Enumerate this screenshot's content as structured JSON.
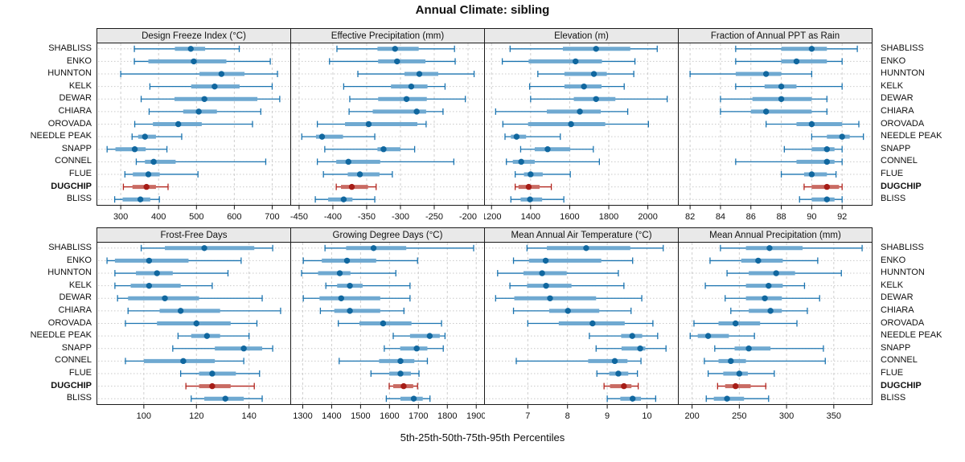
{
  "title": "Annual Climate: sibling",
  "caption": "5th-25th-50th-75th-95th Percentiles",
  "stations": [
    "SHABLISS",
    "ENKO",
    "HUNNTON",
    "KELK",
    "DEWAR",
    "CHIARA",
    "OROVADA",
    "NEEDLE PEAK",
    "SNAPP",
    "CONNEL",
    "FLUE",
    "DUGCHIP",
    "BLISS"
  ],
  "highlight_station": "DUGCHIP",
  "colors": {
    "blue_line": "#1b74b0",
    "blue_band": "#6fa9d1",
    "blue_dot": "#10679f",
    "red_line": "#b2251e",
    "red_band": "#c96b63",
    "red_dot": "#a61d17",
    "grid": "#cfcfcf",
    "row_dots": "#c9c9c9",
    "header_bg": "#e9e9e9",
    "border": "#1a1a1a",
    "tick_text": "#111111"
  },
  "chart_data": {
    "type": "percentile_dotplot_trellis",
    "grid": "2 rows x 4 columns, shared station axis on left and right",
    "percentiles": [
      5,
      25,
      50,
      75,
      95
    ],
    "legend_note": "thin line = 5th-95th, thick band = 25th-75th, dot = 50th percentile; DUGCHIP highlighted red",
    "panels": [
      {
        "title": "Design Freeze Index (°C)",
        "ticks": [
          300,
          400,
          500,
          600,
          700
        ],
        "range": [
          236,
          750
        ],
        "values": [
          [
            336,
            443,
            485,
            523,
            613
          ],
          [
            336,
            373,
            493,
            579,
            695
          ],
          [
            300,
            508,
            566,
            627,
            714
          ],
          [
            377,
            486,
            548,
            614,
            700
          ],
          [
            354,
            442,
            521,
            661,
            720
          ],
          [
            375,
            465,
            506,
            554,
            670
          ],
          [
            337,
            385,
            452,
            514,
            648
          ],
          [
            330,
            346,
            364,
            393,
            461
          ],
          [
            264,
            286,
            337,
            366,
            422
          ],
          [
            341,
            364,
            387,
            445,
            683
          ],
          [
            311,
            332,
            373,
            403,
            504
          ],
          [
            307,
            331,
            368,
            393,
            425
          ],
          [
            284,
            305,
            352,
            378,
            402
          ]
        ]
      },
      {
        "title": "Effective Precipitation (mm)",
        "ticks": [
          -450,
          -400,
          -350,
          -300,
          -250,
          -200
        ],
        "range": [
          -463,
          -175
        ],
        "values": [
          [
            -394,
            -334,
            -308,
            -273,
            -220
          ],
          [
            -405,
            -333,
            -305,
            -263,
            -219
          ],
          [
            -363,
            -294,
            -272,
            -244,
            -191
          ],
          [
            -384,
            -314,
            -284,
            -260,
            -234
          ],
          [
            -375,
            -333,
            -291,
            -261,
            -204
          ],
          [
            -376,
            -341,
            -276,
            -262,
            -237
          ],
          [
            -423,
            -382,
            -347,
            -275,
            -262
          ],
          [
            -446,
            -425,
            -416,
            -385,
            -338
          ],
          [
            -412,
            -334,
            -325,
            -300,
            -279
          ],
          [
            -423,
            -395,
            -377,
            -330,
            -221
          ],
          [
            -414,
            -378,
            -360,
            -331,
            -312
          ],
          [
            -395,
            -388,
            -372,
            -348,
            -336
          ],
          [
            -426,
            -407,
            -384,
            -371,
            -338
          ]
        ]
      },
      {
        "title": "Elevation (m)",
        "ticks": [
          1200,
          1400,
          1600,
          1800,
          2000
        ],
        "range": [
          1162,
          2158
        ],
        "values": [
          [
            1295,
            1565,
            1735,
            1910,
            2048
          ],
          [
            1255,
            1390,
            1630,
            1765,
            1934
          ],
          [
            1437,
            1573,
            1724,
            1790,
            1928
          ],
          [
            1395,
            1573,
            1673,
            1763,
            1879
          ],
          [
            1400,
            1621,
            1735,
            1834,
            2099
          ],
          [
            1221,
            1483,
            1652,
            1759,
            1897
          ],
          [
            1258,
            1387,
            1607,
            1782,
            2003
          ],
          [
            1269,
            1299,
            1328,
            1377,
            1552
          ],
          [
            1349,
            1421,
            1487,
            1603,
            1721
          ],
          [
            1276,
            1309,
            1352,
            1421,
            1752
          ],
          [
            1321,
            1366,
            1400,
            1462,
            1603
          ],
          [
            1321,
            1338,
            1390,
            1446,
            1506
          ],
          [
            1299,
            1349,
            1397,
            1459,
            1570
          ]
        ]
      },
      {
        "title": "Fraction of Annual PPT as Rain",
        "ticks": [
          82,
          84,
          86,
          88,
          90,
          92
        ],
        "range": [
          81.2,
          94.0
        ],
        "values": [
          [
            85,
            88,
            90,
            91,
            93
          ],
          [
            85,
            88,
            89,
            91,
            92
          ],
          [
            82,
            85,
            87,
            88,
            90
          ],
          [
            85,
            86.9,
            88,
            89,
            92
          ],
          [
            84,
            86.1,
            88,
            90,
            91
          ],
          [
            84,
            86,
            87,
            90,
            91
          ],
          [
            87,
            89,
            90,
            92,
            93.1
          ],
          [
            90,
            91,
            92,
            92.5,
            93.4
          ],
          [
            88.2,
            90,
            91,
            91.5,
            92
          ],
          [
            85,
            89,
            91,
            91.5,
            92
          ],
          [
            88,
            89.5,
            90,
            91,
            91.6
          ],
          [
            89.5,
            90,
            91,
            91.8,
            92
          ],
          [
            89.2,
            90,
            91,
            91.5,
            92
          ]
        ]
      },
      {
        "title": "Frost-Free Days",
        "ticks": [
          100,
          120,
          140
        ],
        "range": [
          82,
          156
        ],
        "values": [
          [
            99,
            108,
            123,
            142,
            149
          ],
          [
            86,
            89,
            102,
            117,
            137
          ],
          [
            89,
            97,
            105,
            111,
            132
          ],
          [
            89,
            95,
            102,
            114,
            126
          ],
          [
            90,
            94,
            108,
            121,
            145
          ],
          [
            94,
            106,
            114,
            129,
            152
          ],
          [
            93,
            105,
            120,
            133,
            143
          ],
          [
            113,
            118,
            124,
            129,
            140
          ],
          [
            111,
            127,
            138,
            145,
            149
          ],
          [
            93,
            100,
            115,
            127,
            138
          ],
          [
            114,
            121,
            126,
            135,
            144
          ],
          [
            116,
            121,
            126,
            133,
            142
          ],
          [
            118,
            123,
            131,
            138,
            145
          ]
        ]
      },
      {
        "title": "Growing Degree Days (°C)",
        "ticks": [
          1300,
          1400,
          1500,
          1600,
          1700,
          1800,
          1900
        ],
        "range": [
          1257,
          1930
        ],
        "values": [
          [
            1377,
            1450,
            1545,
            1658,
            1891
          ],
          [
            1302,
            1366,
            1453,
            1554,
            1697
          ],
          [
            1296,
            1353,
            1428,
            1465,
            1622
          ],
          [
            1380,
            1419,
            1463,
            1507,
            1671
          ],
          [
            1302,
            1358,
            1433,
            1568,
            1671
          ],
          [
            1361,
            1409,
            1463,
            1568,
            1650
          ],
          [
            1423,
            1496,
            1578,
            1676,
            1780
          ],
          [
            1613,
            1671,
            1739,
            1774,
            1792
          ],
          [
            1582,
            1637,
            1694,
            1731,
            1786
          ],
          [
            1426,
            1564,
            1638,
            1686,
            1731
          ],
          [
            1536,
            1599,
            1638,
            1674,
            1702
          ],
          [
            1599,
            1613,
            1649,
            1682,
            1697
          ],
          [
            1589,
            1638,
            1684,
            1715,
            1740
          ]
        ]
      },
      {
        "title": "Mean Annual Air Temperature (°C)",
        "ticks": [
          7,
          8,
          9,
          10
        ],
        "range": [
          5.9,
          10.8
        ],
        "values": [
          [
            6.98,
            7.48,
            8.47,
            9.58,
            10.41
          ],
          [
            6.64,
            7.03,
            7.45,
            8.85,
            9.64
          ],
          [
            6.24,
            6.89,
            7.36,
            7.98,
            9.28
          ],
          [
            6.55,
            6.98,
            7.46,
            8.1,
            9.42
          ],
          [
            6.19,
            6.66,
            7.56,
            8.72,
            9.87
          ],
          [
            6.64,
            7.54,
            8.01,
            8.8,
            9.6
          ],
          [
            7.0,
            7.78,
            8.63,
            9.44,
            10.15
          ],
          [
            8.55,
            9.35,
            9.63,
            9.88,
            10.27
          ],
          [
            8.72,
            9.36,
            9.83,
            9.96,
            10.48
          ],
          [
            6.71,
            8.52,
            9.19,
            9.51,
            9.85
          ],
          [
            8.74,
            9.05,
            9.28,
            9.53,
            9.76
          ],
          [
            8.92,
            9.07,
            9.42,
            9.61,
            9.78
          ],
          [
            9.0,
            9.33,
            9.64,
            9.85,
            10.22
          ]
        ]
      },
      {
        "title": "Mean Annual Precipitation (mm)",
        "ticks": [
          200,
          250,
          300,
          350
        ],
        "range": [
          185,
          391
        ],
        "values": [
          [
            230,
            257,
            282,
            317,
            380
          ],
          [
            219,
            252,
            270,
            296,
            333
          ],
          [
            237,
            260,
            289,
            309,
            358
          ],
          [
            214,
            257,
            281,
            296,
            319
          ],
          [
            235,
            257,
            277,
            295,
            335
          ],
          [
            241,
            260,
            283,
            295,
            322
          ],
          [
            202,
            228,
            246,
            272,
            311
          ],
          [
            198,
            206,
            217,
            239,
            266
          ],
          [
            224,
            245,
            260,
            283,
            339
          ],
          [
            213,
            228,
            241,
            257,
            341
          ],
          [
            217,
            233,
            250,
            259,
            287
          ],
          [
            227,
            235,
            246,
            262,
            278
          ],
          [
            215,
            223,
            237,
            255,
            281
          ]
        ]
      }
    ]
  }
}
